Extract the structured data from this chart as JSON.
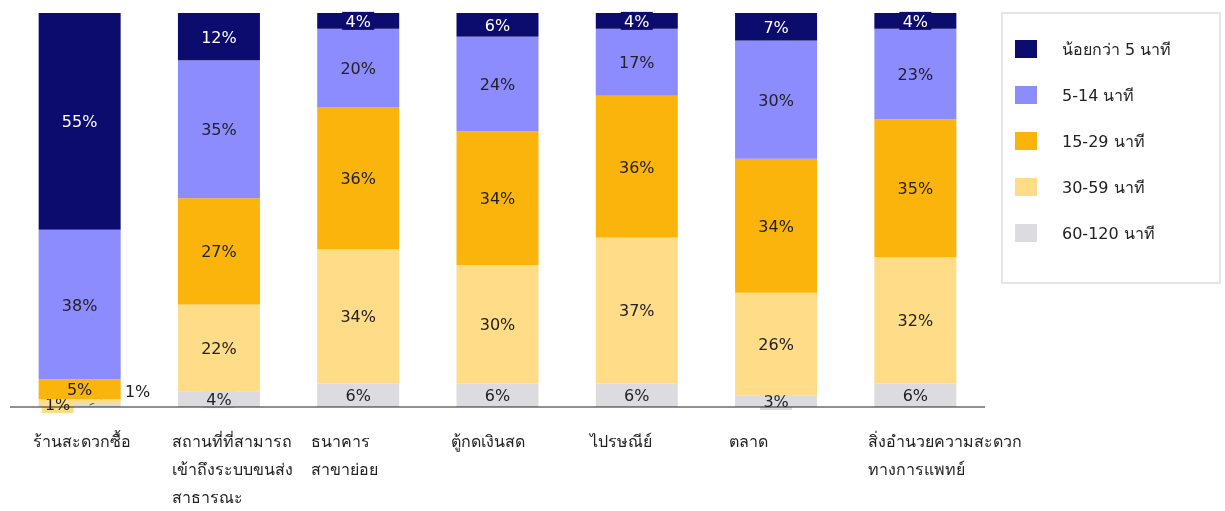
{
  "chart_data": {
    "type": "bar",
    "stacked": true,
    "legend": "right",
    "categories": [
      "ร้านสะดวกซื้อ",
      "สถานที่ที่สามารถ\nเข้าถึงระบบขนส่ง\nสาธารณะ",
      "ธนาคาร\nสาขาย่อย",
      "ตู้กดเงินสด",
      "ไปรษณีย์",
      "ตลาด",
      "สิ่งอำนวยความสะดวก\nทางการแพทย์"
    ],
    "series": [
      {
        "name": "60-120 นาที",
        "color": "#dcdce0",
        "values": [
          1,
          4,
          6,
          6,
          6,
          3,
          6
        ],
        "value_labels": [
          "1%",
          "4%",
          "6%",
          "6%",
          "6%",
          "3%",
          "6%"
        ]
      },
      {
        "name": "30-59 นาที",
        "color": "#fedc88",
        "values": [
          1,
          22,
          34,
          30,
          37,
          26,
          32
        ],
        "value_labels": [
          "1%",
          "22%",
          "34%",
          "30%",
          "37%",
          "26%",
          "32%"
        ]
      },
      {
        "name": "15-29 นาที",
        "color": "#fbb40c",
        "values": [
          5,
          27,
          36,
          34,
          36,
          34,
          35
        ],
        "value_labels": [
          "5%",
          "27%",
          "36%",
          "34%",
          "36%",
          "34%",
          "35%"
        ]
      },
      {
        "name": "5-14 นาที",
        "color": "#8c8cff",
        "values": [
          38,
          35,
          20,
          24,
          17,
          30,
          23
        ],
        "value_labels": [
          "38%",
          "35%",
          "20%",
          "24%",
          "17%",
          "30%",
          "23%"
        ]
      },
      {
        "name": "น้อยกว่า 5 นาที",
        "color": "#0c0c6e",
        "values": [
          55,
          12,
          4,
          6,
          4,
          7,
          4
        ],
        "value_labels": [
          "55%",
          "12%",
          "4%",
          "6%",
          "4%",
          "7%",
          "4%"
        ]
      }
    ]
  }
}
